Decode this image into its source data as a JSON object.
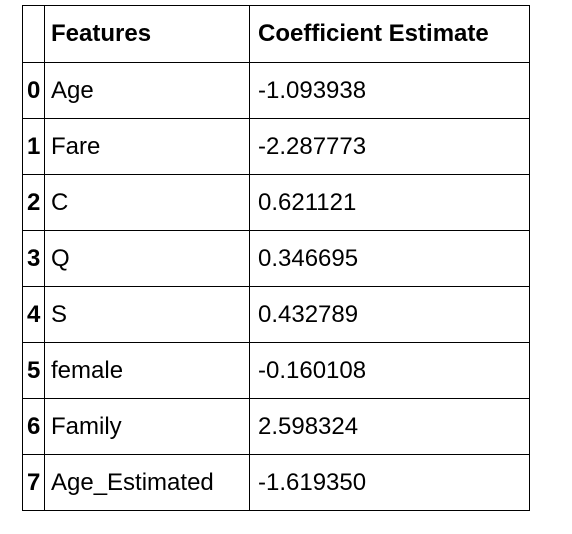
{
  "table": {
    "headers": {
      "index": "",
      "features": "Features",
      "coefficient": "Coefficient Estimate"
    },
    "rows": [
      {
        "index": "0",
        "feature": "Age",
        "coefficient": "-1.093938"
      },
      {
        "index": "1",
        "feature": "Fare",
        "coefficient": "-2.287773"
      },
      {
        "index": "2",
        "feature": "C",
        "coefficient": "0.621121"
      },
      {
        "index": "3",
        "feature": "Q",
        "coefficient": "0.346695"
      },
      {
        "index": "4",
        "feature": "S",
        "coefficient": "0.432789"
      },
      {
        "index": "5",
        "feature": "female",
        "coefficient": "-0.160108"
      },
      {
        "index": "6",
        "feature": "Family",
        "coefficient": "2.598324"
      },
      {
        "index": "7",
        "feature": "Age_Estimated",
        "coefficient": "-1.619350"
      }
    ]
  }
}
